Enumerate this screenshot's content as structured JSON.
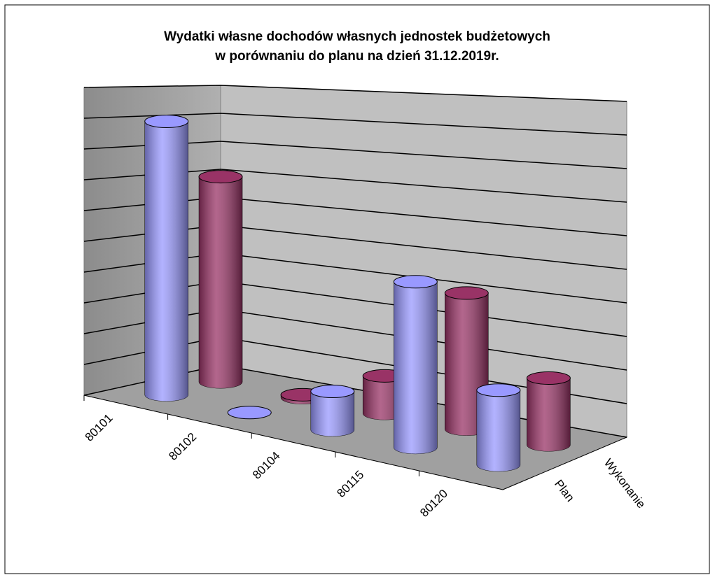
{
  "chart_data": {
    "type": "bar3d",
    "title": [
      "Wydatki własne dochodów własnych jednostek budżetowych",
      "w porównaniu do planu na dzień 31.12.2019r."
    ],
    "categories": [
      "80101",
      "80102",
      "80104",
      "80115",
      "80120"
    ],
    "series": [
      {
        "name": "Plan",
        "color": "#9999ff",
        "values": [
          9,
          0,
          1.2,
          5,
          2.2
        ]
      },
      {
        "name": "Wykonanie",
        "color": "#993366",
        "values": [
          7,
          0.1,
          1.2,
          4.2,
          2
        ]
      }
    ],
    "ylim": [
      0,
      10
    ],
    "yticks": [
      0,
      1,
      2,
      3,
      4,
      5,
      6,
      7,
      8,
      9,
      10
    ],
    "grid": true
  }
}
